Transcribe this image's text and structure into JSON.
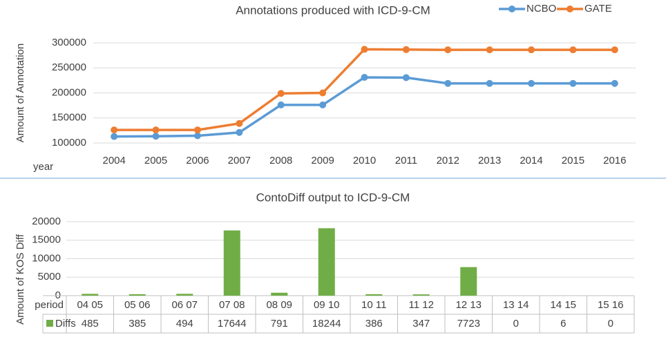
{
  "chart_data": [
    {
      "type": "line",
      "title": "Annotations produced with ICD-9-CM",
      "y_label": "Amount of Annotation",
      "x_label": "year",
      "categories": [
        "2004",
        "2005",
        "2006",
        "2007",
        "2008",
        "2009",
        "2010",
        "2011",
        "2012",
        "2013",
        "2014",
        "2015",
        "2016"
      ],
      "series": [
        {
          "name": "NCBO",
          "color": "#5b9bd5",
          "values": [
            113000,
            113500,
            114500,
            121000,
            176000,
            176000,
            231000,
            230500,
            219000,
            219000,
            219000,
            219000,
            219000
          ]
        },
        {
          "name": "GATE",
          "color": "#ed7d31",
          "values": [
            126000,
            126000,
            126000,
            139000,
            199000,
            200000,
            287000,
            286500,
            286000,
            286000,
            286000,
            286000,
            286000
          ]
        }
      ],
      "ylim": [
        100000,
        300000
      ],
      "yticks": [
        100000,
        150000,
        200000,
        250000,
        300000
      ],
      "grid": true,
      "legend": "top-right"
    },
    {
      "type": "bar",
      "title": "ContoDiff output to ICD-9-CM",
      "y_label": "Amount of KOS Diff",
      "x_label": "period",
      "categories": [
        "04 05",
        "05 06",
        "06 07",
        "07 08",
        "08 09",
        "09 10",
        "10 11",
        "11 12",
        "12 13",
        "13 14",
        "14 15",
        "15 16"
      ],
      "series": [
        {
          "name": "Diffs",
          "color": "#70ad47",
          "values": [
            485,
            385,
            494,
            17644,
            791,
            18244,
            386,
            347,
            7723,
            0,
            6,
            0
          ]
        }
      ],
      "ylim": [
        0,
        20000
      ],
      "yticks": [
        0,
        5000,
        10000,
        15000,
        20000
      ],
      "grid": true,
      "data_table": true
    }
  ]
}
